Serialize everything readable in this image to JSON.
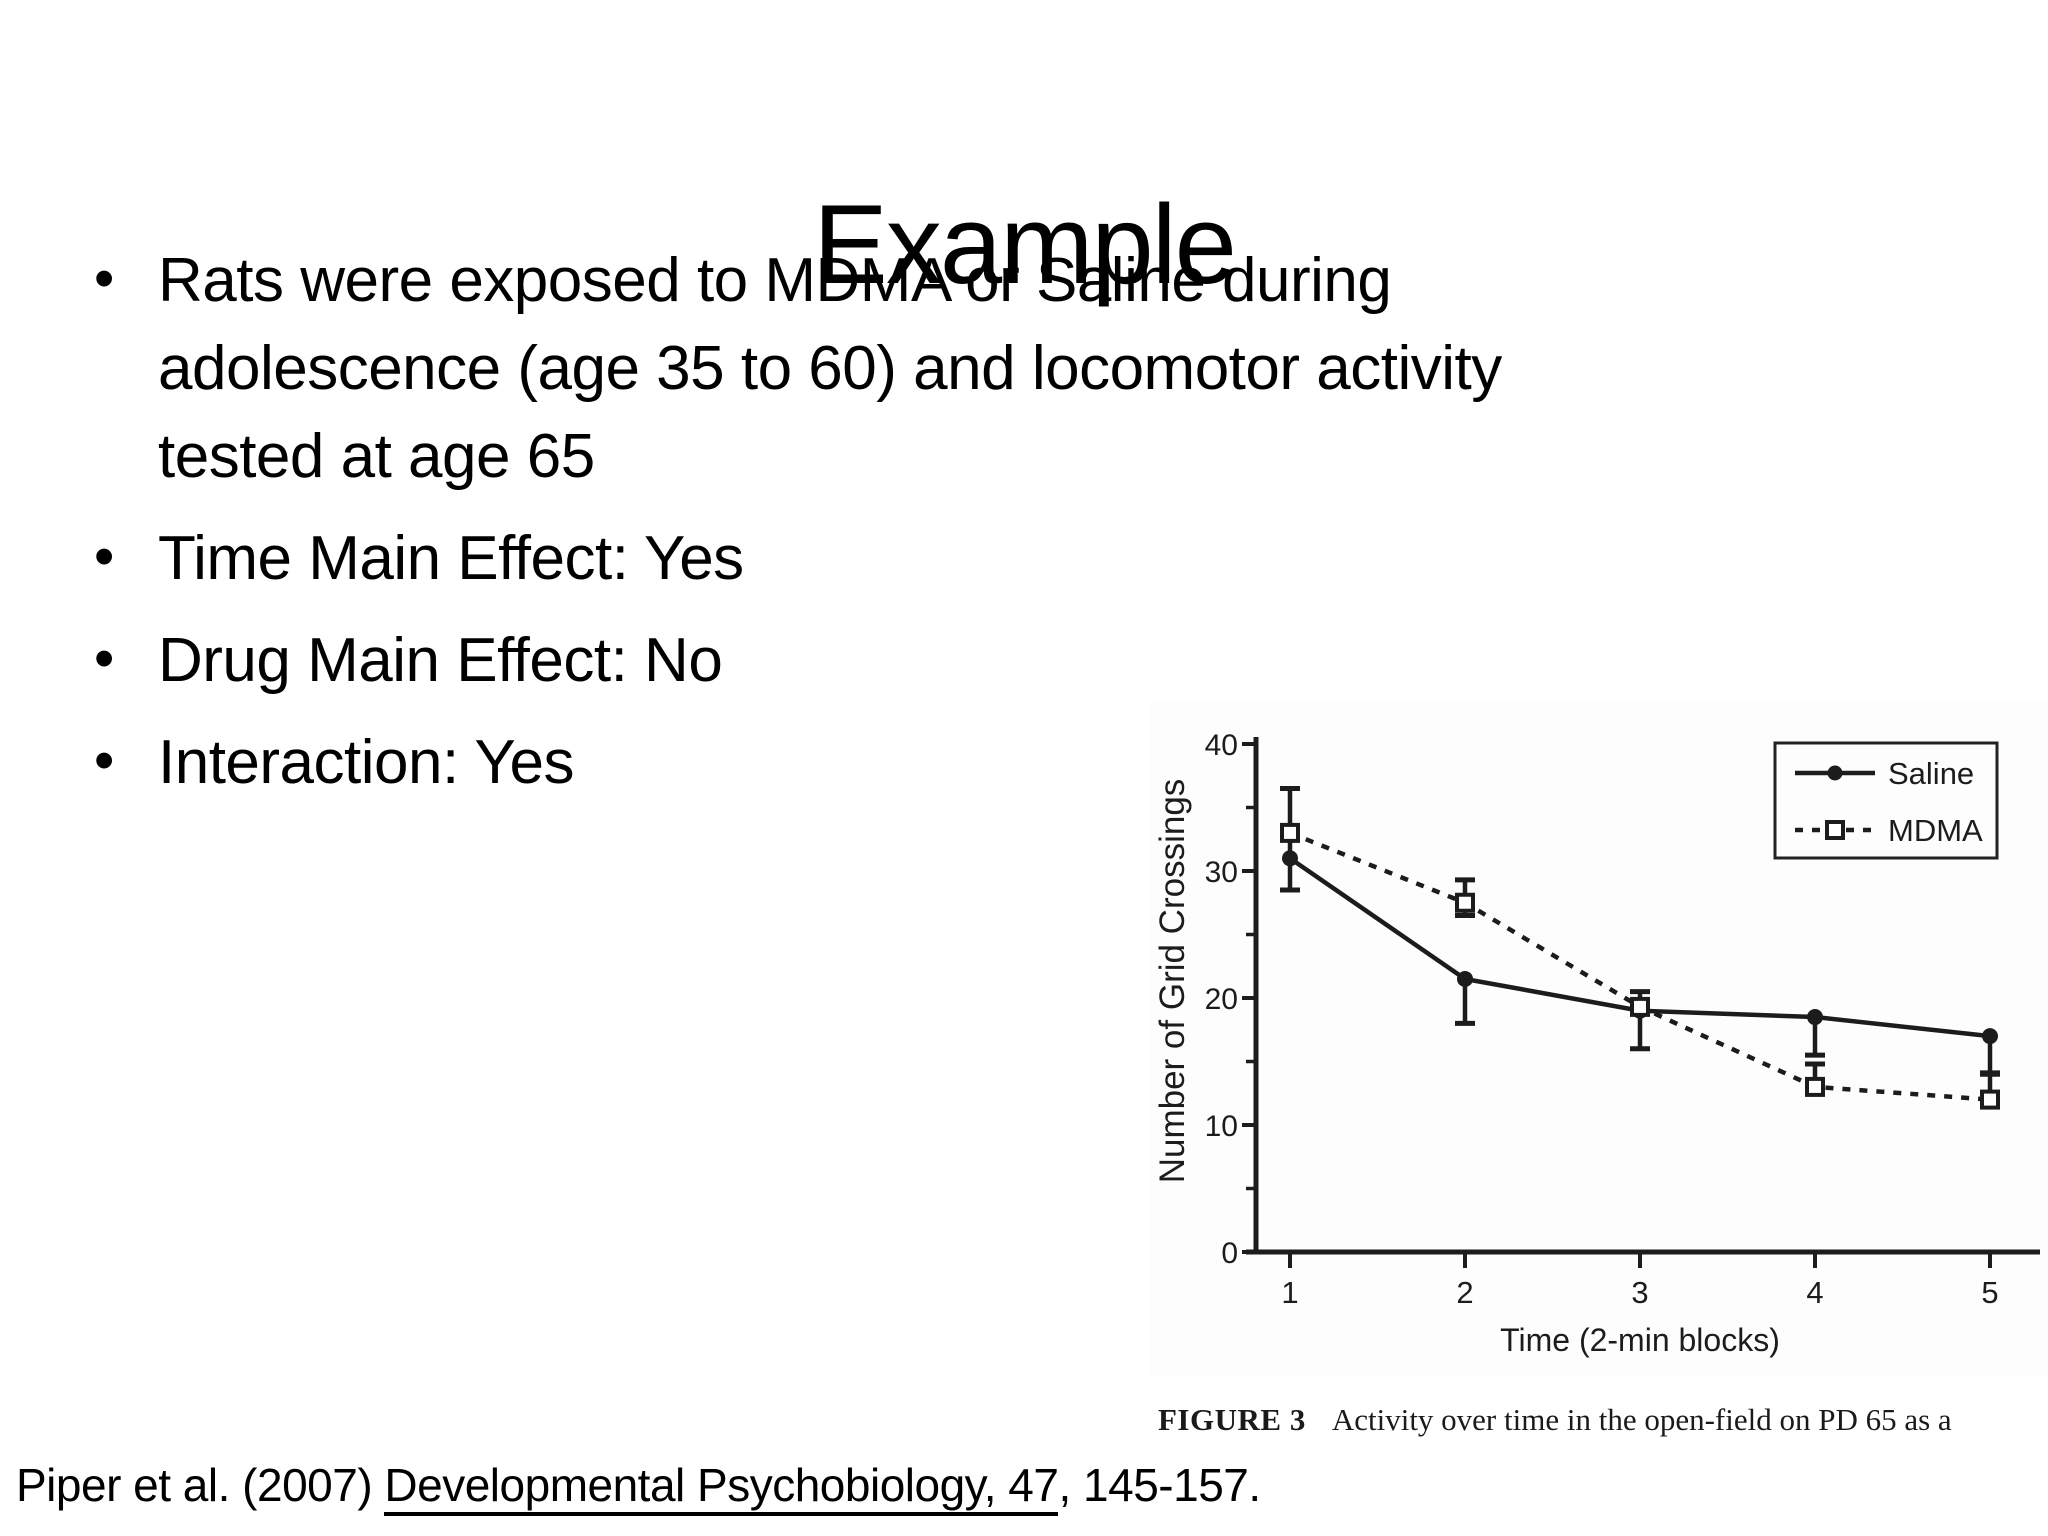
{
  "slide": {
    "title": "Example",
    "bullet_glyph": "•",
    "bullets": [
      "Rats were exposed to MDMA or Saline during adolescence (age 35 to 60) and locomotor activity tested at age 65",
      "Time Main Effect: Yes",
      "Drug Main Effect: No",
      "Interaction: Yes"
    ],
    "citation": {
      "prefix": "Piper et al. (2007) ",
      "underlined": "Developmental Psychobiology, 47",
      "suffix": ", 145-157."
    }
  },
  "figure": {
    "caption_label": "FIGURE 3",
    "caption_text": "Activity over time in the open-field on PD 65 as a"
  },
  "chart_data": {
    "type": "line",
    "x": [
      1,
      2,
      3,
      4,
      5
    ],
    "x_tick_labels": [
      "1",
      "2",
      "3",
      "4",
      "5"
    ],
    "xlabel": "Time (2-min blocks)",
    "ylabel": "Number of Grid Crossings",
    "ylim": [
      0,
      40
    ],
    "y_ticks": [
      0,
      10,
      20,
      30,
      40
    ],
    "y_minor_ticks": [
      5,
      15,
      25,
      35
    ],
    "grid": false,
    "legend_position": "top-right",
    "series": [
      {
        "name": "Saline",
        "marker": "filled-circle",
        "line": "solid",
        "values": [
          31,
          21.5,
          19,
          18.5,
          17
        ],
        "err_up": [
          2.5,
          0,
          1.5,
          0,
          0
        ],
        "err_down": [
          2.5,
          3.5,
          3,
          3,
          3
        ]
      },
      {
        "name": "MDMA",
        "marker": "open-square",
        "line": "dashed",
        "values": [
          33,
          27.5,
          19.3,
          13,
          12
        ],
        "err_up": [
          3.5,
          1.8,
          0,
          1.8,
          2.1
        ],
        "err_down": [
          0,
          1,
          0,
          0.5,
          0.5
        ]
      }
    ],
    "colors": {
      "ink": "#1c1c1c"
    }
  }
}
